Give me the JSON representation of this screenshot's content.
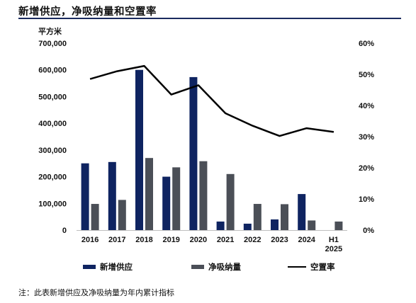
{
  "title": "新增供应，净吸纳量和空置率",
  "left_unit": "平方米",
  "note": "注：此表新增供应及净吸纳量为年内累计指标",
  "colors": {
    "supply": "#0f2461",
    "absorption": "#4b4f57",
    "vacancy": "#000000",
    "rule": "#1a2a5e"
  },
  "chart_data": {
    "type": "bar",
    "categories": [
      "2016",
      "2017",
      "2018",
      "2019",
      "2020",
      "2021",
      "2022",
      "2023",
      "2024",
      "H1\n2025"
    ],
    "series": [
      {
        "name": "新增供应",
        "type": "bar",
        "axis": "left",
        "values": [
          250000,
          255000,
          600000,
          200000,
          573000,
          32000,
          24000,
          40000,
          135000,
          0
        ]
      },
      {
        "name": "净吸纳量",
        "type": "bar",
        "axis": "left",
        "values": [
          98000,
          113000,
          270000,
          235000,
          258000,
          210000,
          98000,
          97000,
          36000,
          32000
        ]
      },
      {
        "name": "空置率",
        "type": "line",
        "axis": "right",
        "values": [
          48.5,
          51.0,
          52.7,
          43.5,
          46.5,
          37.5,
          33.5,
          30.2,
          32.7,
          31.5
        ]
      }
    ],
    "ylim_left": [
      0,
      700000
    ],
    "yticks_left": [
      "0",
      "100,000",
      "200,000",
      "300,000",
      "400,000",
      "500,000",
      "600,000",
      "700,000"
    ],
    "ylim_right": [
      0,
      60
    ],
    "yticks_right": [
      "0%",
      "10%",
      "20%",
      "30%",
      "40%",
      "50%",
      "60%"
    ],
    "ylabel": "平方米",
    "legend_position": "bottom",
    "grid": false
  }
}
